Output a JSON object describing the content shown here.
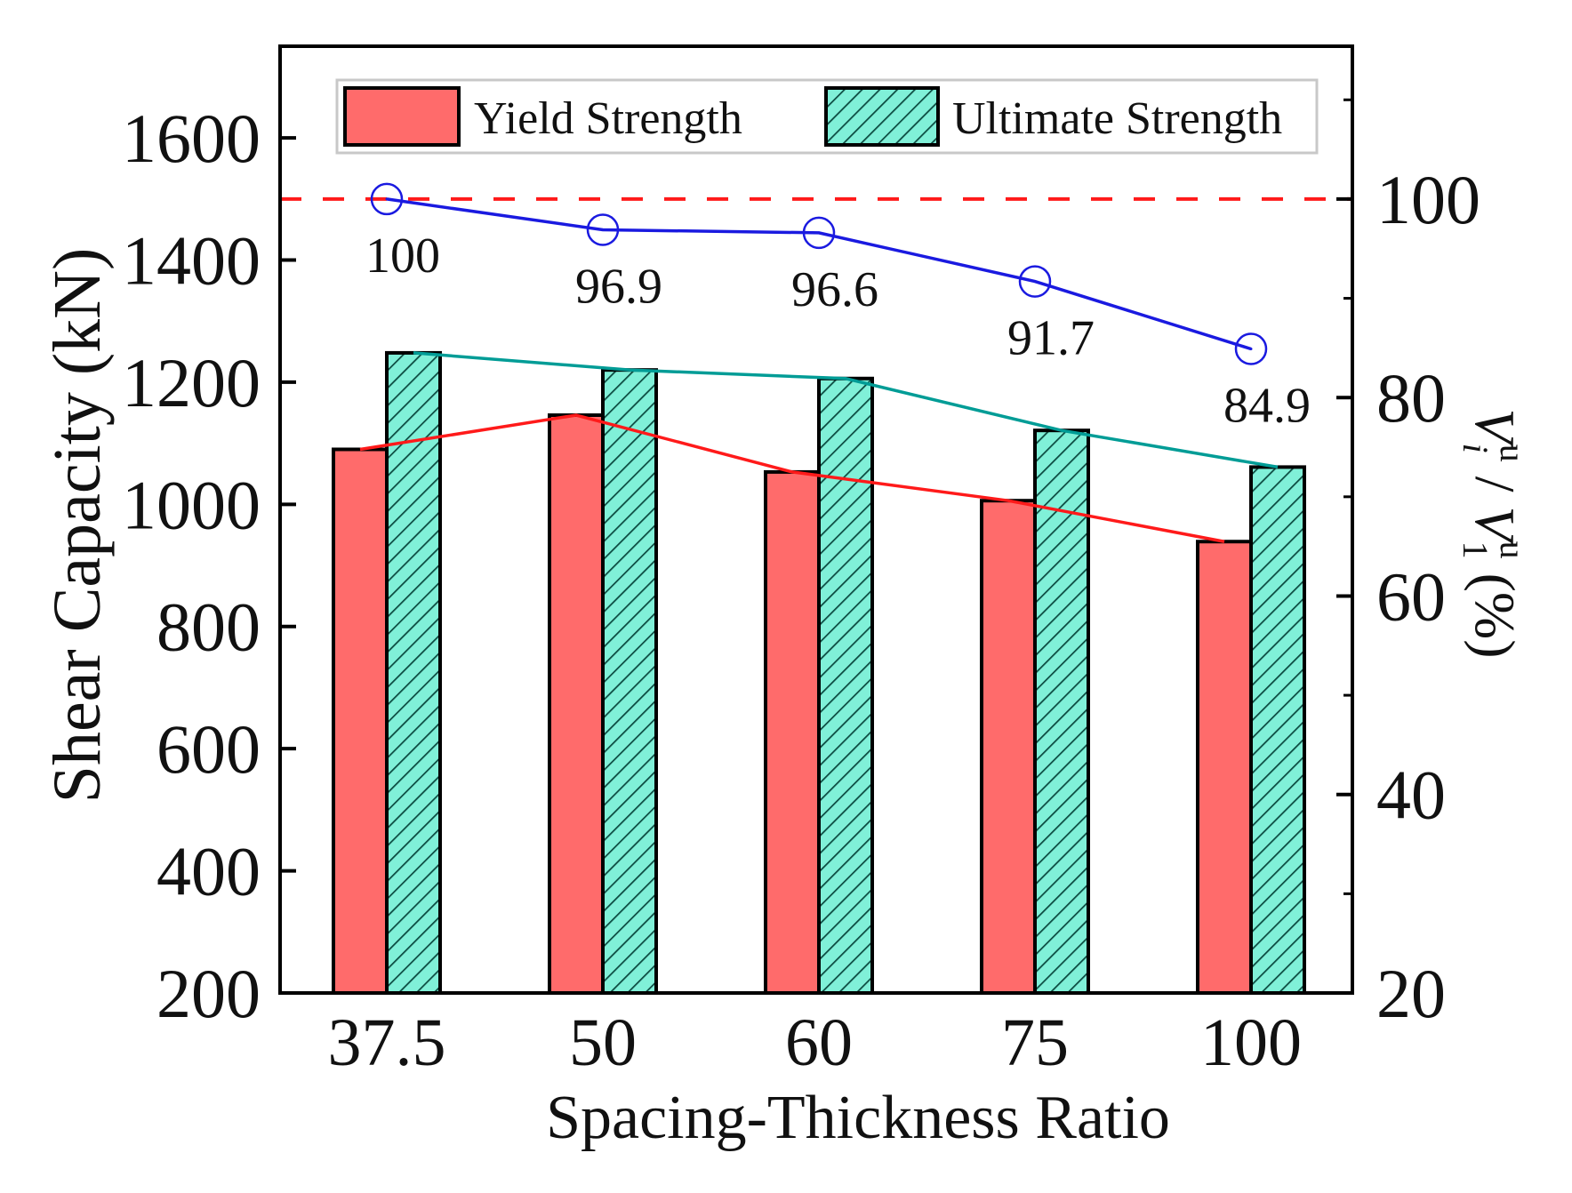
{
  "chart_data": {
    "type": "bar",
    "xlabel": "Spacing-Thickness Ratio",
    "ylabel": "Shear Capacity (kN)",
    "y2label": {
      "main": "V",
      "sub_i": "i",
      "sup": "u",
      "sep": " / ",
      "sub_1": "1",
      "unit": " (%)"
    },
    "categories": [
      "37.5",
      "50",
      "60",
      "75",
      "100"
    ],
    "ylim": [
      200,
      1750
    ],
    "yticks": [
      200,
      400,
      600,
      800,
      1000,
      1200,
      1400,
      1600
    ],
    "y2lim": [
      20,
      115.4
    ],
    "y2ticks": [
      20,
      40,
      60,
      80,
      100
    ],
    "y2minor": [
      30,
      50,
      70,
      90,
      110
    ],
    "series": [
      {
        "name": "Yield Strength",
        "values": [
          1090,
          1146,
          1053,
          1006,
          939
        ],
        "color": "#ff6b6b",
        "line_color": "#ff1a1a"
      },
      {
        "name": "Ultimate Strength",
        "values": [
          1248,
          1220,
          1206,
          1121,
          1061
        ],
        "color": "#80f0d8",
        "hatch_color": "#0b4a40",
        "line_color": "#009c96"
      }
    ],
    "ratio_series": {
      "axis": "right",
      "values": [
        100,
        96.9,
        96.6,
        91.7,
        84.9
      ],
      "labels": [
        "100",
        "96.9",
        "96.6",
        "91.7",
        "84.9"
      ],
      "color": "#1a1ae0"
    },
    "reference_line": {
      "axis": "right",
      "value": 100,
      "color": "#ff1a1a",
      "style": "dashed"
    },
    "legend": {
      "placement": "top",
      "entries": [
        "Yield Strength",
        "Ultimate Strength"
      ]
    },
    "grid": false
  }
}
